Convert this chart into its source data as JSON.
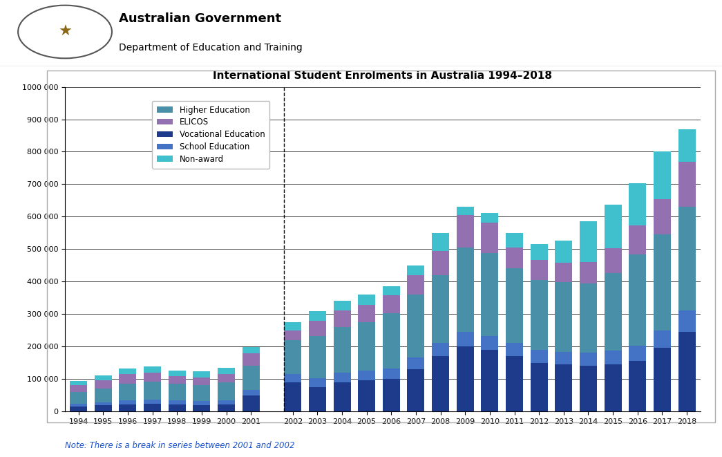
{
  "title": "International Student Enrolments in Australia 1994–2018",
  "note": "Note: There is a break in series between 2001 and 2002",
  "years": [
    1994,
    1995,
    1996,
    1997,
    1998,
    1999,
    2000,
    2001,
    2002,
    2003,
    2004,
    2005,
    2006,
    2007,
    2008,
    2009,
    2010,
    2011,
    2012,
    2013,
    2014,
    2015,
    2016,
    2017,
    2018
  ],
  "categories_legend": [
    "Higher Education",
    "ELICOS",
    "Vocational Education",
    "School Education",
    "Non-award"
  ],
  "colors_legend": [
    "#4a8fa8",
    "#9370b0",
    "#1e3a8a",
    "#4472c4",
    "#40bfcc"
  ],
  "stack_order": [
    "Vocational Education",
    "School Education",
    "Higher Education",
    "ELICOS",
    "Non-award"
  ],
  "stack_colors": [
    "#1e3a8a",
    "#4472c4",
    "#4a8fa8",
    "#9370b0",
    "#40bfcc"
  ],
  "data": {
    "Higher Education": [
      36000,
      42000,
      52000,
      55000,
      50000,
      50000,
      55000,
      75000,
      105000,
      130000,
      140000,
      150000,
      170000,
      195000,
      210000,
      260000,
      255000,
      230000,
      215000,
      215000,
      215000,
      240000,
      280000,
      295000,
      320000
    ],
    "ELICOS": [
      22000,
      25000,
      28000,
      28000,
      24000,
      24000,
      26000,
      38000,
      30000,
      45000,
      50000,
      52000,
      55000,
      60000,
      75000,
      100000,
      95000,
      65000,
      62000,
      60000,
      65000,
      75000,
      90000,
      110000,
      140000
    ],
    "Vocational Education": [
      15000,
      18000,
      22000,
      24000,
      22000,
      20000,
      22000,
      48000,
      90000,
      75000,
      90000,
      95000,
      100000,
      130000,
      170000,
      200000,
      190000,
      170000,
      150000,
      145000,
      140000,
      145000,
      155000,
      195000,
      245000
    ],
    "School Education": [
      8000,
      10000,
      12000,
      13000,
      12000,
      11000,
      12000,
      18000,
      25000,
      28000,
      30000,
      30000,
      32000,
      35000,
      40000,
      45000,
      42000,
      40000,
      40000,
      38000,
      40000,
      42000,
      48000,
      55000,
      65000
    ],
    "Non-award": [
      12000,
      16000,
      18000,
      18000,
      18000,
      18000,
      20000,
      18000,
      25000,
      30000,
      30000,
      32000,
      28000,
      30000,
      55000,
      25000,
      30000,
      45000,
      48000,
      68000,
      125000,
      135000,
      130000,
      145000,
      100000
    ]
  },
  "ylim": [
    0,
    1000000
  ],
  "yticks": [
    0,
    100000,
    200000,
    300000,
    400000,
    500000,
    600000,
    700000,
    800000,
    900000,
    1000000
  ],
  "ytick_labels": [
    "0",
    "100 000",
    "200 000",
    "300 000",
    "400 000",
    "500 000",
    "600 000",
    "700 000",
    "800 000",
    "900 000",
    "1000 000"
  ],
  "break_after_year": 2001
}
